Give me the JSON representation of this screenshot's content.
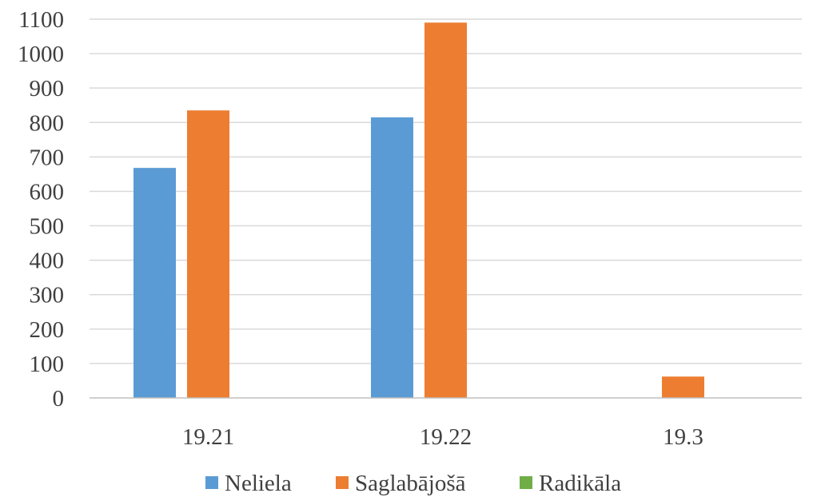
{
  "chart_data": {
    "type": "bar",
    "categories": [
      "19.21",
      "19.22",
      "19.3"
    ],
    "series": [
      {
        "name": "Neliela",
        "values": [
          668,
          815,
          0
        ],
        "color": "#5b9bd5"
      },
      {
        "name": "Saglabājošā",
        "values": [
          835,
          1090,
          62
        ],
        "color": "#ed7d31"
      },
      {
        "name": "Radikāla",
        "values": [
          0,
          0,
          0
        ],
        "color": "#70ad47"
      }
    ],
    "yticks": [
      "0",
      "100",
      "200",
      "300",
      "400",
      "500",
      "600",
      "700",
      "800",
      "900",
      "1000",
      "1100"
    ],
    "ylim": [
      0,
      1100
    ],
    "grid": true,
    "legend_position": "bottom"
  }
}
